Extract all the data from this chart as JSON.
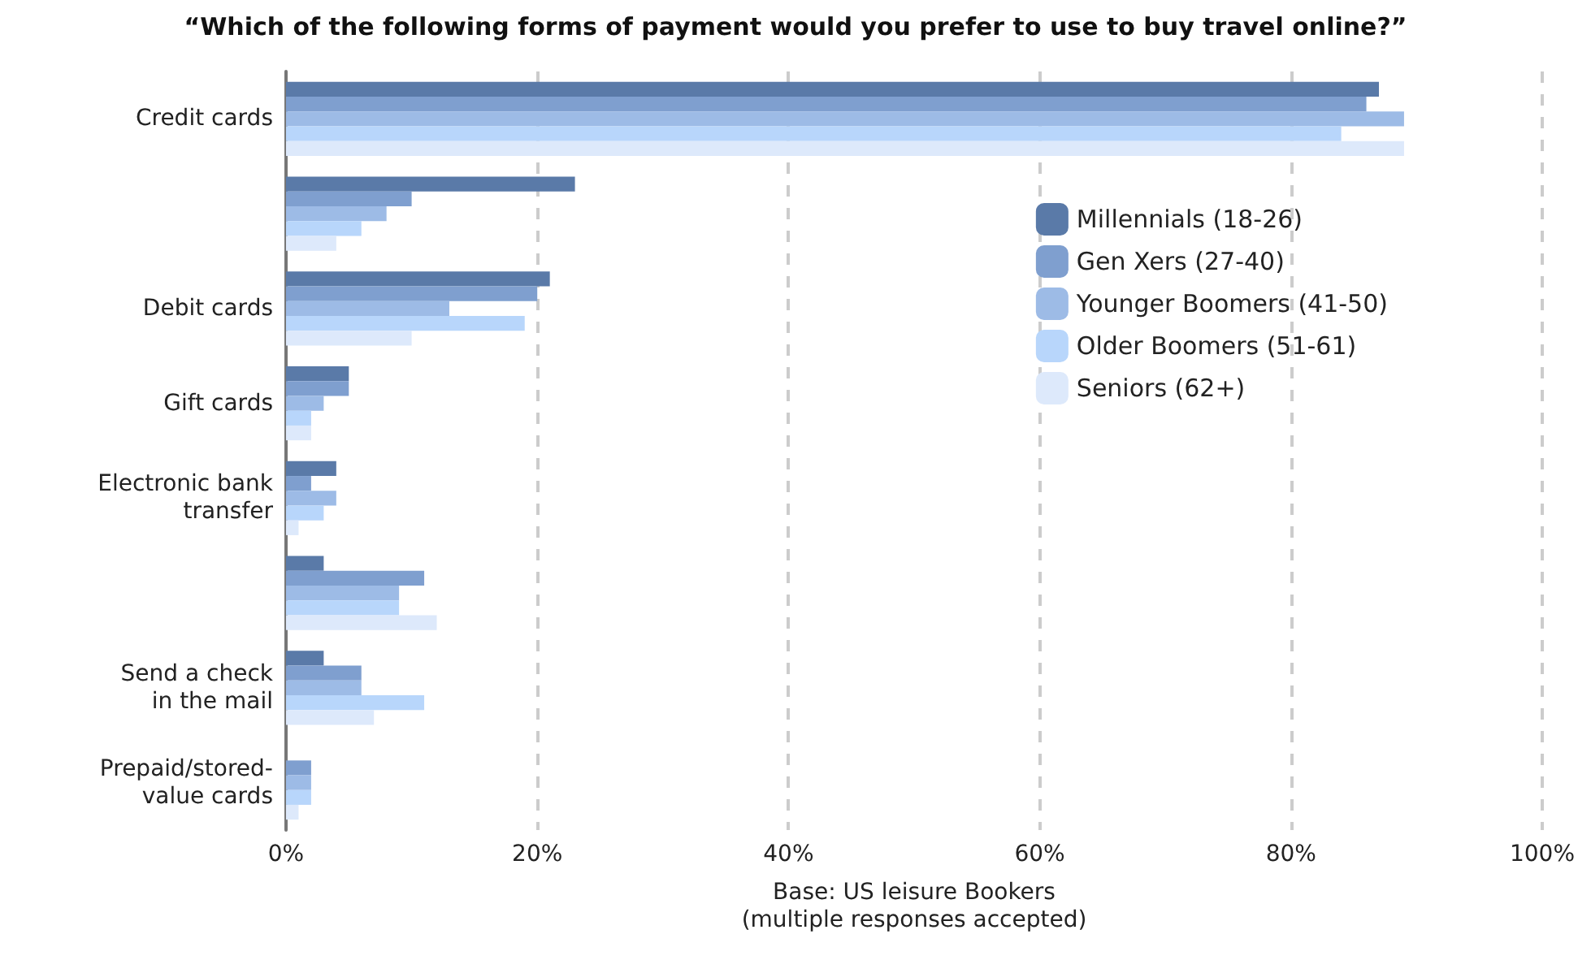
{
  "chart_data": {
    "type": "bar",
    "orientation": "horizontal",
    "title": "“Which of the following forms of payment would you prefer to use to buy travel online?”",
    "xlabel": "Base: US leisure Bookers\n(multiple responses accepted)",
    "categories": [
      "Credit cards",
      null,
      "Debit cards",
      "Gift cards",
      "Electronic bank\ntransfer",
      null,
      "Send a check\nin the mail",
      "Prepaid/stored-\nvalue cards"
    ],
    "series": [
      {
        "name": "Millennials (18-26)",
        "color": "#5a7aa8",
        "values": [
          87,
          23,
          21,
          5,
          4,
          3,
          3,
          0
        ]
      },
      {
        "name": "Gen Xers (27-40)",
        "color": "#7f9fcf",
        "values": [
          86,
          10,
          20,
          5,
          2,
          11,
          6,
          2
        ]
      },
      {
        "name": "Younger Boomers (41-50)",
        "color": "#9dbbe6",
        "values": [
          89,
          8,
          13,
          3,
          4,
          9,
          6,
          2
        ]
      },
      {
        "name": "Older Boomers (51-61)",
        "color": "#b8d6fb",
        "values": [
          84,
          6,
          19,
          2,
          3,
          9,
          11,
          2
        ]
      },
      {
        "name": "Seniors (62+)",
        "color": "#dde9fb",
        "values": [
          89,
          4,
          10,
          2,
          1,
          12,
          7,
          1
        ]
      }
    ],
    "xlim": [
      0,
      100
    ],
    "xticks": [
      {
        "value": 0,
        "label": "0%"
      },
      {
        "value": 20,
        "label": "20%"
      },
      {
        "value": 40,
        "label": "40%"
      },
      {
        "value": 60,
        "label": "60%"
      },
      {
        "value": 80,
        "label": "80%"
      },
      {
        "value": 100,
        "label": "100%"
      }
    ],
    "grid": "x",
    "legend": "top right"
  }
}
